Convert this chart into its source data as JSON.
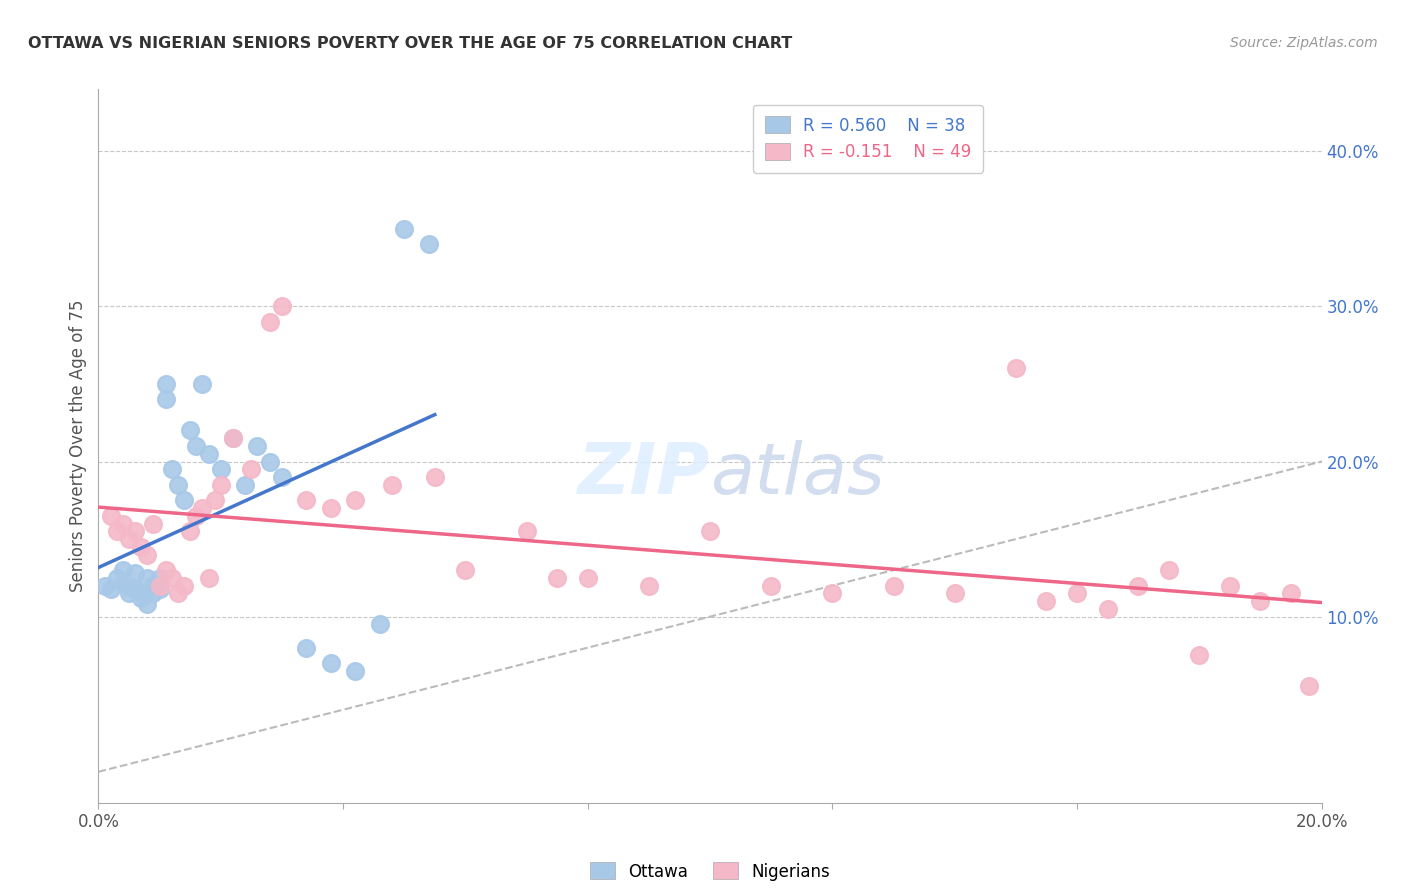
{
  "title": "OTTAWA VS NIGERIAN SENIORS POVERTY OVER THE AGE OF 75 CORRELATION CHART",
  "source": "Source: ZipAtlas.com",
  "ylabel": "Seniors Poverty Over the Age of 75",
  "xlim": [
    0.0,
    0.2
  ],
  "ylim": [
    -0.02,
    0.44
  ],
  "xticks": [
    0.0,
    0.04,
    0.08,
    0.12,
    0.16,
    0.2
  ],
  "xtick_labels": [
    "0.0%",
    "",
    "",
    "",
    "",
    "20.0%"
  ],
  "yticks_right": [
    0.1,
    0.2,
    0.3,
    0.4
  ],
  "background_color": "#ffffff",
  "grid_color": "#c8c8c8",
  "ottawa_color": "#a8c8e8",
  "nigerian_color": "#f4b8c8",
  "ottawa_line_color": "#4477cc",
  "nigerian_line_color": "#ee6688",
  "diag_color": "#bbbbbb",
  "legend_ottawa_R": "R = 0.560",
  "legend_ottawa_N": "N = 38",
  "legend_nigerian_R": "R = -0.151",
  "legend_nigerian_N": "N = 49",
  "watermark_zip": "ZIP",
  "watermark_atlas": "atlas",
  "ottawa_x": [
    0.001,
    0.002,
    0.003,
    0.004,
    0.004,
    0.005,
    0.005,
    0.006,
    0.006,
    0.007,
    0.007,
    0.008,
    0.008,
    0.009,
    0.009,
    0.01,
    0.01,
    0.011,
    0.011,
    0.012,
    0.013,
    0.014,
    0.015,
    0.016,
    0.017,
    0.018,
    0.02,
    0.022,
    0.024,
    0.026,
    0.028,
    0.03,
    0.034,
    0.038,
    0.042,
    0.046,
    0.05,
    0.054
  ],
  "ottawa_y": [
    0.12,
    0.118,
    0.125,
    0.122,
    0.13,
    0.115,
    0.12,
    0.118,
    0.128,
    0.115,
    0.112,
    0.108,
    0.125,
    0.12,
    0.115,
    0.118,
    0.125,
    0.24,
    0.25,
    0.195,
    0.185,
    0.175,
    0.22,
    0.21,
    0.25,
    0.205,
    0.195,
    0.215,
    0.185,
    0.21,
    0.2,
    0.19,
    0.08,
    0.07,
    0.065,
    0.095,
    0.35,
    0.34
  ],
  "nigerian_x": [
    0.002,
    0.003,
    0.004,
    0.005,
    0.006,
    0.007,
    0.008,
    0.009,
    0.01,
    0.011,
    0.012,
    0.013,
    0.014,
    0.015,
    0.016,
    0.017,
    0.018,
    0.019,
    0.02,
    0.022,
    0.025,
    0.028,
    0.03,
    0.034,
    0.038,
    0.042,
    0.048,
    0.055,
    0.06,
    0.07,
    0.075,
    0.08,
    0.09,
    0.1,
    0.11,
    0.12,
    0.13,
    0.14,
    0.15,
    0.155,
    0.16,
    0.165,
    0.17,
    0.175,
    0.18,
    0.185,
    0.19,
    0.195,
    0.198
  ],
  "nigerian_y": [
    0.165,
    0.155,
    0.16,
    0.15,
    0.155,
    0.145,
    0.14,
    0.16,
    0.12,
    0.13,
    0.125,
    0.115,
    0.12,
    0.155,
    0.165,
    0.17,
    0.125,
    0.175,
    0.185,
    0.215,
    0.195,
    0.29,
    0.3,
    0.175,
    0.17,
    0.175,
    0.185,
    0.19,
    0.13,
    0.155,
    0.125,
    0.125,
    0.12,
    0.155,
    0.12,
    0.115,
    0.12,
    0.115,
    0.26,
    0.11,
    0.115,
    0.105,
    0.12,
    0.13,
    0.075,
    0.12,
    0.11,
    0.115,
    0.055
  ]
}
